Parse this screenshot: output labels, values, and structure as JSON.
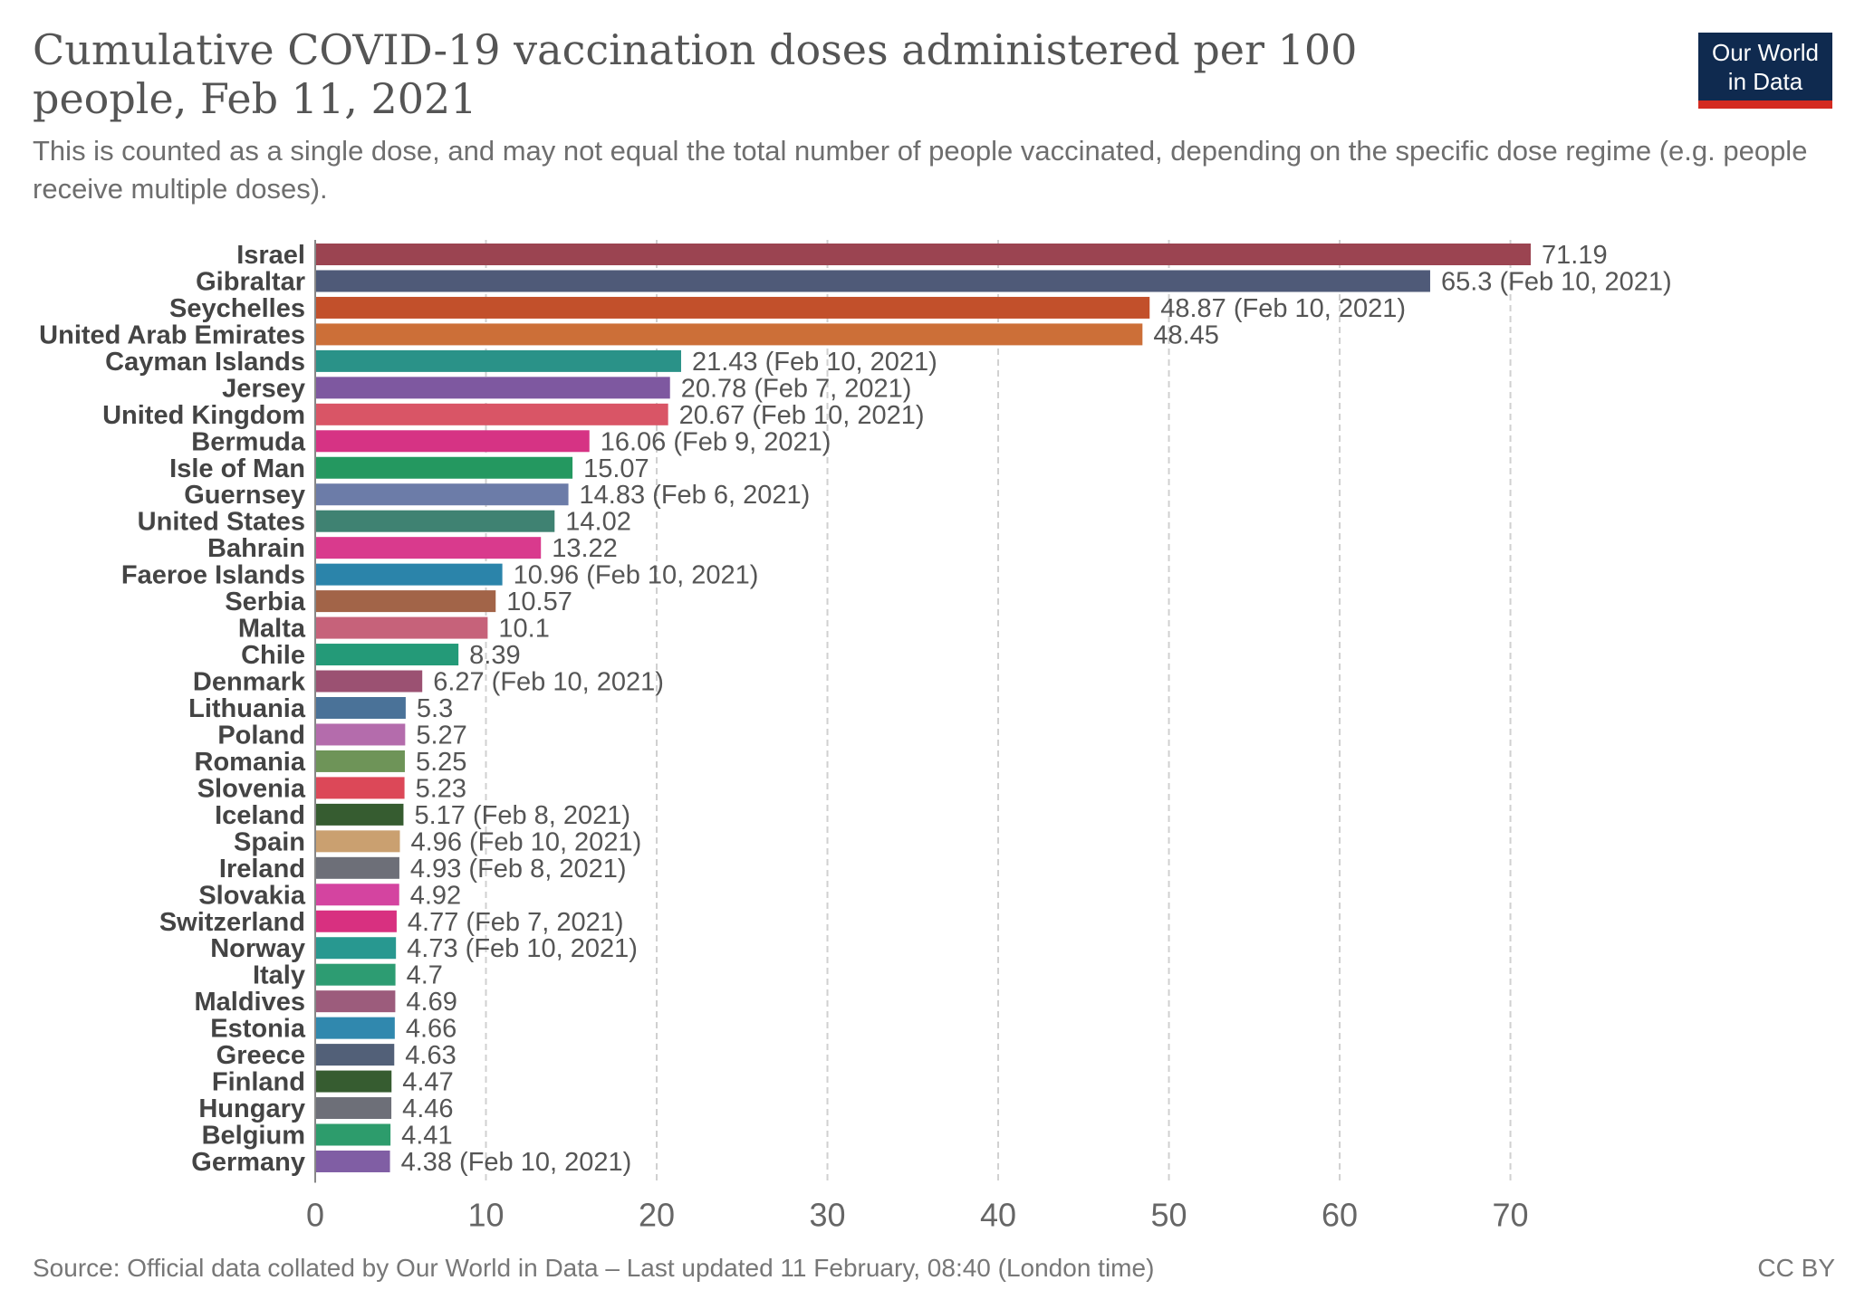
{
  "logo": {
    "line1": "Our World",
    "line2": "in Data"
  },
  "footer": {
    "source": "Source: Official data collated by Our World in Data – Last updated 11 February, 08:40 (London time)",
    "license": "CC BY"
  },
  "chart_data": {
    "type": "bar",
    "orientation": "horizontal",
    "title": "Cumulative COVID-19 vaccination doses administered per 100 people, Feb 11, 2021",
    "subtitle": "This is counted as a single dose, and may not equal the total number of people vaccinated, depending on the specific dose regime (e.g. people receive multiple doses).",
    "xlabel": "",
    "ylabel": "",
    "xlim": [
      0,
      71.19
    ],
    "xticks": [
      0,
      10,
      20,
      30,
      40,
      50,
      60,
      70
    ],
    "grid": true,
    "categories": [
      "Israel",
      "Gibraltar",
      "Seychelles",
      "United Arab Emirates",
      "Cayman Islands",
      "Jersey",
      "United Kingdom",
      "Bermuda",
      "Isle of Man",
      "Guernsey",
      "United States",
      "Bahrain",
      "Faeroe Islands",
      "Serbia",
      "Malta",
      "Chile",
      "Denmark",
      "Lithuania",
      "Poland",
      "Romania",
      "Slovenia",
      "Iceland",
      "Spain",
      "Ireland",
      "Slovakia",
      "Switzerland",
      "Norway",
      "Italy",
      "Maldives",
      "Estonia",
      "Greece",
      "Finland",
      "Hungary",
      "Belgium",
      "Germany"
    ],
    "values": [
      71.19,
      65.3,
      48.87,
      48.45,
      21.43,
      20.78,
      20.67,
      16.06,
      15.07,
      14.83,
      14.02,
      13.22,
      10.96,
      10.57,
      10.1,
      8.39,
      6.27,
      5.3,
      5.27,
      5.25,
      5.23,
      5.17,
      4.96,
      4.93,
      4.92,
      4.77,
      4.73,
      4.7,
      4.69,
      4.66,
      4.63,
      4.47,
      4.46,
      4.41,
      4.38
    ],
    "labels": [
      "71.19",
      "65.3 (Feb 10, 2021)",
      "48.87 (Feb 10, 2021)",
      "48.45",
      "21.43 (Feb 10, 2021)",
      "20.78 (Feb 7, 2021)",
      "20.67 (Feb 10, 2021)",
      "16.06 (Feb 9, 2021)",
      "15.07",
      "14.83 (Feb 6, 2021)",
      "14.02",
      "13.22",
      "10.96 (Feb 10, 2021)",
      "10.57",
      "10.1",
      "8.39",
      "6.27 (Feb 10, 2021)",
      "5.3",
      "5.27",
      "5.25",
      "5.23",
      "5.17 (Feb 8, 2021)",
      "4.96 (Feb 10, 2021)",
      "4.93 (Feb 8, 2021)",
      "4.92",
      "4.77 (Feb 7, 2021)",
      "4.73 (Feb 10, 2021)",
      "4.7",
      "4.69",
      "4.66",
      "4.63",
      "4.47",
      "4.46",
      "4.41",
      "4.38 (Feb 10, 2021)"
    ],
    "colors": [
      "#9b4451",
      "#4f5a78",
      "#c2502b",
      "#cc6f38",
      "#2a9288",
      "#7e58a0",
      "#d95566",
      "#d63384",
      "#249860",
      "#6c7ca8",
      "#3f8272",
      "#d93a8d",
      "#2b84aa",
      "#a26448",
      "#c6627a",
      "#249a78",
      "#9b5172",
      "#4a7298",
      "#b46cac",
      "#6e9458",
      "#dc4858",
      "#365c30",
      "#caa070",
      "#6d6f78",
      "#d444a0",
      "#d83080",
      "#289890",
      "#2d9c72",
      "#9c5c7c",
      "#3088ae",
      "#526078",
      "#365c30",
      "#6d6f78",
      "#2d9c6c",
      "#805ea4"
    ]
  }
}
